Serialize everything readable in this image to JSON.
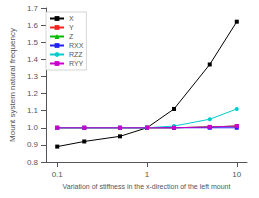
{
  "chart_data": {
    "type": "line",
    "xlabel": "Variation of stiffness in the x-direction of the left mount",
    "ylabel": "Mount system natural frequency",
    "x": [
      0.1,
      0.2,
      0.5,
      1.0,
      2.0,
      5.0,
      10.0
    ],
    "series": [
      {
        "name": "X",
        "color": "#000000",
        "marker": "square",
        "values": [
          0.89,
          0.92,
          0.95,
          1.0,
          1.11,
          1.37,
          1.62
        ]
      },
      {
        "name": "Y",
        "color": "#ff2222",
        "marker": "square",
        "values": [
          1.0,
          1.0,
          1.0,
          1.0,
          1.0,
          1.005,
          1.01
        ]
      },
      {
        "name": "Z",
        "color": "#00bb00",
        "marker": "triangle",
        "values": [
          1.0,
          1.0,
          1.0,
          1.0,
          1.0,
          1.005,
          1.01
        ]
      },
      {
        "name": "RXX",
        "color": "#2222ff",
        "marker": "square",
        "values": [
          1.0,
          1.0,
          1.0,
          1.0,
          1.0,
          1.0,
          1.0
        ]
      },
      {
        "name": "RZZ",
        "color": "#00cccc",
        "marker": "circle",
        "values": [
          1.0,
          1.0,
          1.0,
          1.0,
          1.01,
          1.05,
          1.11
        ]
      },
      {
        "name": "RYY",
        "color": "#cc00cc",
        "marker": "square",
        "values": [
          1.0,
          1.0,
          1.0,
          1.0,
          1.0,
          1.005,
          1.01
        ]
      }
    ],
    "log": "x",
    "xlim": [
      0.075,
      13
    ],
    "xticks": [
      0.1,
      1,
      10
    ],
    "ylim": [
      0.8,
      1.7
    ],
    "yticks": [
      0.8,
      0.9,
      {
        "value": 1.0,
        "label": "1.0"
      },
      1.1,
      1.2,
      1.3,
      1.4,
      1.5,
      1.6,
      1.7
    ],
    "grid": false,
    "legend": "upper left"
  }
}
